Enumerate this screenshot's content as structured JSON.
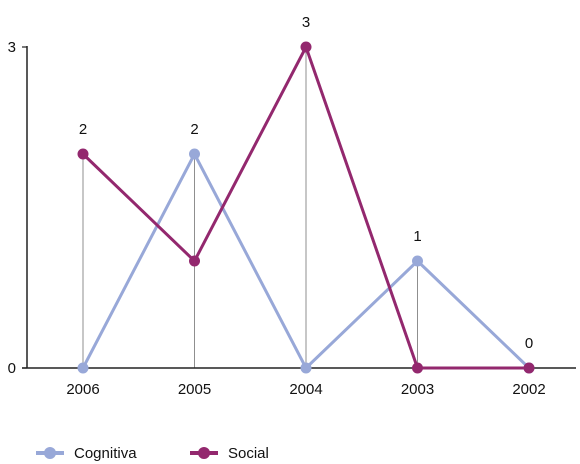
{
  "chart_data": {
    "type": "line",
    "categories": [
      "2006",
      "2005",
      "2004",
      "2003",
      "2002"
    ],
    "series": [
      {
        "name": "Cognitiva",
        "color": "#98a8d8",
        "values": [
          0,
          2,
          0,
          1,
          0
        ]
      },
      {
        "name": "Social",
        "color": "#93286e",
        "values": [
          2,
          1,
          3,
          0,
          0
        ]
      }
    ],
    "yticks": [
      0,
      3
    ],
    "ylim": [
      0,
      3
    ],
    "title": "",
    "xlabel": "",
    "ylabel": "",
    "legend_position": "bottom-left",
    "grid": false,
    "drop_lines": true,
    "label_series": "max"
  }
}
